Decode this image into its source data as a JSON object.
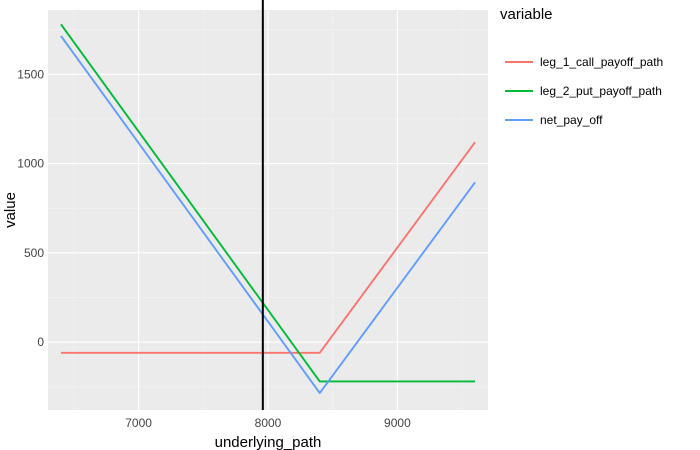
{
  "chart_data": {
    "type": "line",
    "title": "",
    "xlabel": "underlying_path",
    "ylabel": "value",
    "xlim": [
      6300,
      9700
    ],
    "ylim": [
      -380,
      1860
    ],
    "xticks": [
      7000,
      8000,
      9000
    ],
    "yticks": [
      0,
      500,
      1000,
      1500
    ],
    "grid": true,
    "legend": {
      "title": "variable",
      "position": "right"
    },
    "vline": {
      "x": 7960,
      "color": "#000000"
    },
    "series": [
      {
        "name": "leg_1_call_payoff_path",
        "color": "#F8766D",
        "x": [
          6400,
          8400,
          9600
        ],
        "y": [
          -60,
          -60,
          1120
        ]
      },
      {
        "name": "leg_2_put_payoff_path",
        "color": "#00BA38",
        "x": [
          6400,
          8400,
          9600
        ],
        "y": [
          1780,
          -220,
          -220
        ]
      },
      {
        "name": "net_pay_off",
        "color": "#619CFF",
        "x": [
          6400,
          8400,
          9600
        ],
        "y": [
          1715,
          -285,
          895
        ]
      }
    ]
  }
}
